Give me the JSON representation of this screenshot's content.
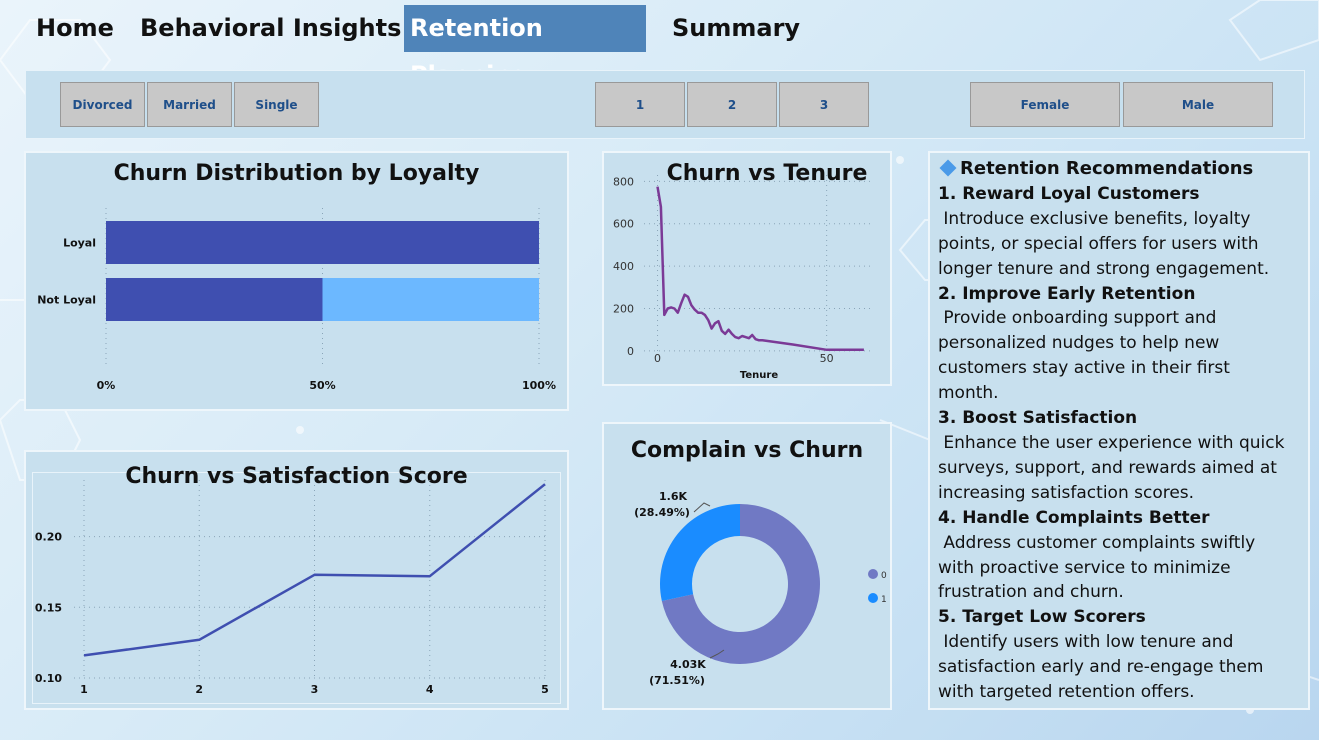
{
  "colors": {
    "accent_nav": "#4f84b9",
    "bar_dark": "#3f4fb0",
    "bar_light": "#6cb8ff",
    "line_purple": "#7b3a96",
    "donut_zero": "#7079c4",
    "donut_one": "#1a8cff"
  },
  "nav": {
    "items": [
      "Home",
      "Behavioral Insights",
      "Retention Planning",
      "Summary"
    ],
    "active": "Retention Planning"
  },
  "filters": {
    "marital": [
      "Divorced",
      "Married",
      "Single"
    ],
    "tier": [
      "1",
      "2",
      "3"
    ],
    "gender": [
      "Female",
      "Male"
    ]
  },
  "loyalty_chart": {
    "title": "Churn Distribution by Loyalty"
  },
  "tenure_chart": {
    "title": "Churn vs Tenure"
  },
  "satisfaction_chart": {
    "title": "Churn vs Satisfaction Score"
  },
  "complain_chart": {
    "title": "Complain vs Churn"
  },
  "chart_data": [
    {
      "type": "bar",
      "stacked_percent": true,
      "orientation": "horizontal",
      "title": "Churn Distribution by Loyalty",
      "categories": [
        "Loyal",
        "Not Loyal"
      ],
      "series": [
        {
          "values": [
            100,
            50
          ]
        },
        {
          "values": [
            0,
            50
          ]
        }
      ],
      "xticks": [
        "0%",
        "50%",
        "100%"
      ],
      "xlim": [
        0,
        100
      ],
      "grid": true
    },
    {
      "type": "line",
      "title": "Churn vs Tenure",
      "xlabel": "Tenure",
      "ylabel": "",
      "x": [
        0,
        1,
        2,
        3,
        4,
        5,
        6,
        7,
        8,
        9,
        10,
        11,
        12,
        13,
        14,
        15,
        16,
        17,
        18,
        19,
        20,
        21,
        22,
        23,
        24,
        25,
        26,
        27,
        28,
        29,
        30,
        31,
        40,
        50,
        61
      ],
      "y": [
        775,
        680,
        170,
        200,
        205,
        200,
        180,
        225,
        265,
        255,
        215,
        195,
        180,
        180,
        170,
        145,
        105,
        130,
        140,
        95,
        80,
        100,
        80,
        65,
        60,
        70,
        65,
        60,
        75,
        55,
        50,
        50,
        30,
        5,
        5
      ],
      "xticks": [
        0,
        50
      ],
      "yticks": [
        0,
        200,
        400,
        600,
        800
      ],
      "xlim": [
        -4,
        64
      ],
      "ylim": [
        -10,
        830
      ],
      "grid": true
    },
    {
      "type": "line",
      "title": "Churn vs Satisfaction Score",
      "x": [
        1,
        2,
        3,
        4,
        5
      ],
      "y": [
        0.116,
        0.127,
        0.173,
        0.172,
        0.237
      ],
      "xticks": [
        "1",
        "2",
        "3",
        "4",
        "5"
      ],
      "yticks": [
        "0.10",
        "0.15",
        "0.20"
      ],
      "ylim": [
        0.1,
        0.24
      ],
      "grid": true
    },
    {
      "type": "pie",
      "donut": true,
      "title": "Complain vs Churn",
      "labels": [
        "0",
        "1"
      ],
      "values": [
        4030,
        1600
      ],
      "percents": [
        71.51,
        28.49
      ],
      "value_labels": [
        "4.03K",
        "1.6K"
      ],
      "percent_labels": [
        "(71.51%)",
        "(28.49%)"
      ],
      "legend": "right"
    }
  ],
  "recommendations": {
    "title": "Retention Recommendations",
    "items": [
      {
        "heading": "1. Reward Loyal Customers",
        "lines": [
          " Introduce exclusive benefits, loyalty",
          "points, or special offers for users with",
          "longer tenure and strong engagement."
        ]
      },
      {
        "heading": "2. Improve Early Retention",
        "lines": [
          " Provide onboarding support and",
          "personalized nudges to help new",
          "customers stay active in their first",
          "month."
        ]
      },
      {
        "heading": "3. Boost Satisfaction",
        "lines": [
          " Enhance the user experience with quick",
          "surveys, support, and rewards aimed at",
          "increasing satisfaction scores."
        ]
      },
      {
        "heading": "4. Handle Complaints Better",
        "lines": [
          " Address customer complaints swiftly",
          "with proactive service to minimize",
          "frustration and churn."
        ]
      },
      {
        "heading": "5. Target Low Scorers",
        "lines": [
          " Identify users with low tenure and",
          "satisfaction early and re-engage them",
          "with targeted retention offers."
        ]
      }
    ]
  }
}
